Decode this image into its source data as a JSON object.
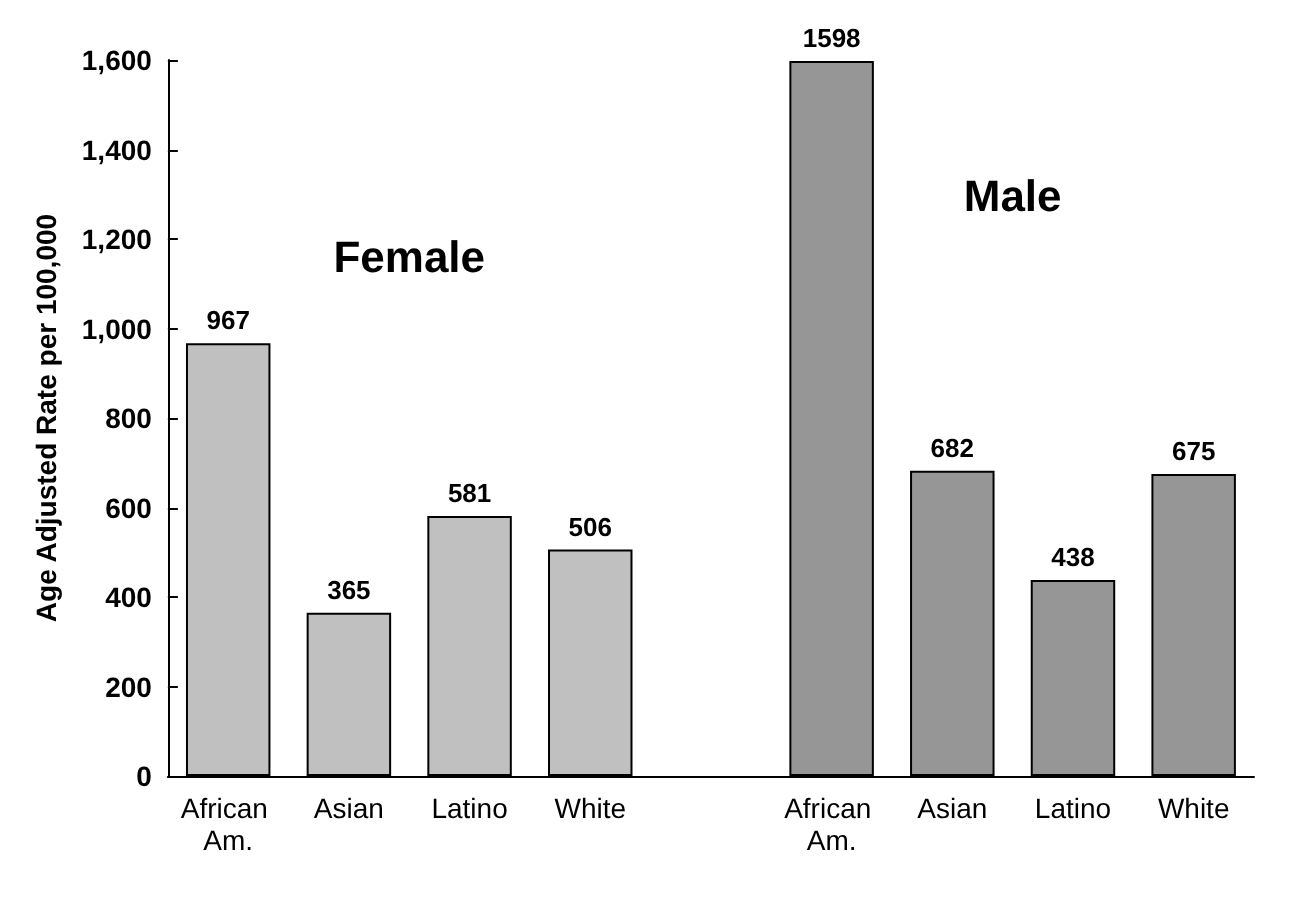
{
  "chart_data": {
    "type": "bar",
    "ylabel": "Age Adjusted Rate per 100,000",
    "categories": [
      "African Am.",
      "Asian",
      "Latino",
      "White",
      null,
      "African Am.",
      "Asian",
      "Latino",
      "White"
    ],
    "series": [
      {
        "name": "Female",
        "color": "#c0c0c0",
        "values": [
          967,
          365,
          581,
          506,
          null,
          null,
          null,
          null,
          null
        ]
      },
      {
        "name": "Male",
        "color": "#969696",
        "values": [
          null,
          null,
          null,
          null,
          null,
          1598,
          682,
          438,
          675
        ]
      }
    ],
    "ylim": [
      0,
      1600
    ],
    "yticks": [
      0,
      200,
      400,
      600,
      800,
      {
        "value": 1000,
        "label": "1,000"
      },
      {
        "value": 1200,
        "label": "1,200"
      },
      {
        "value": 1400,
        "label": "1,400"
      },
      {
        "value": 1600,
        "label": "1,600"
      }
    ],
    "data_labels": true,
    "grid": false,
    "legend": false
  }
}
